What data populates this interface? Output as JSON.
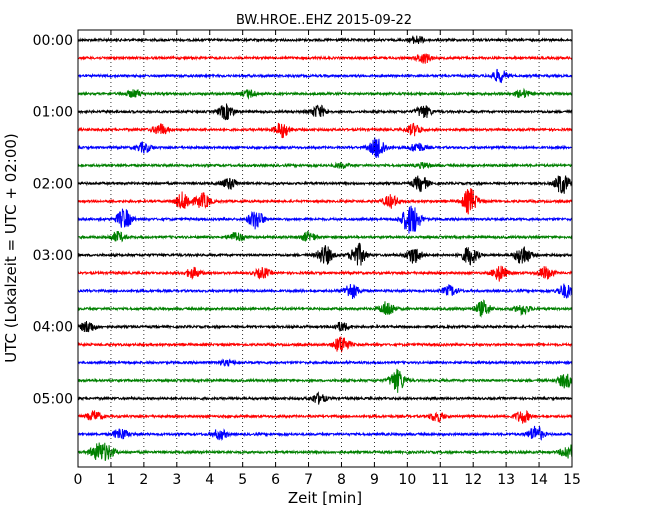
{
  "chart_data": {
    "type": "line",
    "title": "BW.HROE..EHZ 2015-09-22",
    "xlabel": "Zeit  [min]",
    "ylabel": "UTC (Lokalzeit = UTC + 02:00)",
    "xlim": [
      0,
      15
    ],
    "x_ticks": [
      "0",
      "1",
      "2",
      "3",
      "4",
      "5",
      "6",
      "7",
      "8",
      "9",
      "10",
      "11",
      "12",
      "13",
      "14",
      "15"
    ],
    "y_ticks": [
      {
        "label": "00:00",
        "row": 0
      },
      {
        "label": "01:00",
        "row": 4
      },
      {
        "label": "02:00",
        "row": 8
      },
      {
        "label": "03:00",
        "row": 12
      },
      {
        "label": "04:00",
        "row": 16
      },
      {
        "label": "05:00",
        "row": 20
      }
    ],
    "vertical_grid": "dotted",
    "row_interval_minutes": 15,
    "colors": [
      "#000000",
      "#ff0000",
      "#0000ff",
      "#008000"
    ],
    "series": [
      {
        "start": "00:00",
        "color": "#000000",
        "events": [
          [
            10.3,
            1.2
          ]
        ]
      },
      {
        "start": "00:15",
        "color": "#ff0000",
        "events": [
          [
            10.5,
            1.6
          ]
        ]
      },
      {
        "start": "00:30",
        "color": "#0000ff",
        "events": [
          [
            12.8,
            2.0
          ]
        ]
      },
      {
        "start": "00:45",
        "color": "#008000",
        "events": [
          [
            1.7,
            1.2
          ],
          [
            5.2,
            1.2
          ],
          [
            13.5,
            1.2
          ]
        ]
      },
      {
        "start": "01:00",
        "color": "#000000",
        "events": [
          [
            4.5,
            2.4
          ],
          [
            7.3,
            2.0
          ],
          [
            10.5,
            2.0
          ]
        ]
      },
      {
        "start": "01:15",
        "color": "#ff0000",
        "events": [
          [
            2.5,
            1.8
          ],
          [
            6.2,
            2.4
          ],
          [
            10.2,
            1.8
          ]
        ]
      },
      {
        "start": "01:30",
        "color": "#0000ff",
        "events": [
          [
            2.0,
            1.6
          ],
          [
            9.1,
            3.5
          ],
          [
            10.3,
            1.5
          ]
        ]
      },
      {
        "start": "01:45",
        "color": "#008000",
        "events": [
          [
            8.0,
            0.8
          ],
          [
            10.5,
            0.8
          ]
        ]
      },
      {
        "start": "02:00",
        "color": "#000000",
        "events": [
          [
            4.6,
            1.8
          ],
          [
            10.4,
            2.4
          ],
          [
            14.7,
            3.2
          ]
        ]
      },
      {
        "start": "02:15",
        "color": "#ff0000",
        "events": [
          [
            3.2,
            2.8
          ],
          [
            3.8,
            2.4
          ],
          [
            9.5,
            2.0
          ],
          [
            11.9,
            4.0
          ]
        ]
      },
      {
        "start": "02:30",
        "color": "#0000ff",
        "events": [
          [
            1.4,
            3.2
          ],
          [
            5.4,
            3.0
          ],
          [
            10.0,
            2.5
          ],
          [
            10.2,
            3.2
          ]
        ]
      },
      {
        "start": "02:45",
        "color": "#008000",
        "events": [
          [
            1.2,
            1.6
          ],
          [
            4.8,
            1.5
          ],
          [
            7.0,
            1.5
          ]
        ]
      },
      {
        "start": "03:00",
        "color": "#000000",
        "events": [
          [
            7.5,
            3.0
          ],
          [
            8.5,
            3.6
          ],
          [
            10.2,
            2.6
          ],
          [
            11.9,
            3.0
          ],
          [
            13.5,
            3.2
          ]
        ]
      },
      {
        "start": "03:15",
        "color": "#ff0000",
        "events": [
          [
            3.5,
            1.6
          ],
          [
            5.6,
            1.6
          ],
          [
            12.8,
            2.4
          ],
          [
            14.2,
            2.0
          ]
        ]
      },
      {
        "start": "03:30",
        "color": "#0000ff",
        "events": [
          [
            8.3,
            2.4
          ],
          [
            11.3,
            1.6
          ],
          [
            14.8,
            2.2
          ]
        ]
      },
      {
        "start": "03:45",
        "color": "#008000",
        "events": [
          [
            9.4,
            2.4
          ],
          [
            12.3,
            2.4
          ],
          [
            13.5,
            1.6
          ]
        ]
      },
      {
        "start": "04:00",
        "color": "#000000",
        "events": [
          [
            0.3,
            1.8
          ],
          [
            8.0,
            1.4
          ]
        ]
      },
      {
        "start": "04:15",
        "color": "#ff0000",
        "events": [
          [
            8.0,
            2.8
          ]
        ]
      },
      {
        "start": "04:30",
        "color": "#0000ff",
        "events": [
          [
            4.5,
            0.8
          ]
        ]
      },
      {
        "start": "04:45",
        "color": "#008000",
        "events": [
          [
            9.7,
            3.6
          ],
          [
            14.8,
            2.2
          ]
        ]
      },
      {
        "start": "05:00",
        "color": "#000000",
        "events": [
          [
            7.3,
            1.6
          ]
        ]
      },
      {
        "start": "05:15",
        "color": "#ff0000",
        "events": [
          [
            0.5,
            1.6
          ],
          [
            10.9,
            1.6
          ],
          [
            13.5,
            2.0
          ]
        ]
      },
      {
        "start": "05:30",
        "color": "#0000ff",
        "events": [
          [
            1.3,
            1.8
          ],
          [
            4.3,
            1.6
          ],
          [
            13.9,
            2.6
          ]
        ]
      },
      {
        "start": "05:45",
        "color": "#008000",
        "events": [
          [
            0.6,
            2.4
          ],
          [
            0.9,
            2.0
          ],
          [
            14.9,
            2.4
          ]
        ]
      }
    ]
  }
}
